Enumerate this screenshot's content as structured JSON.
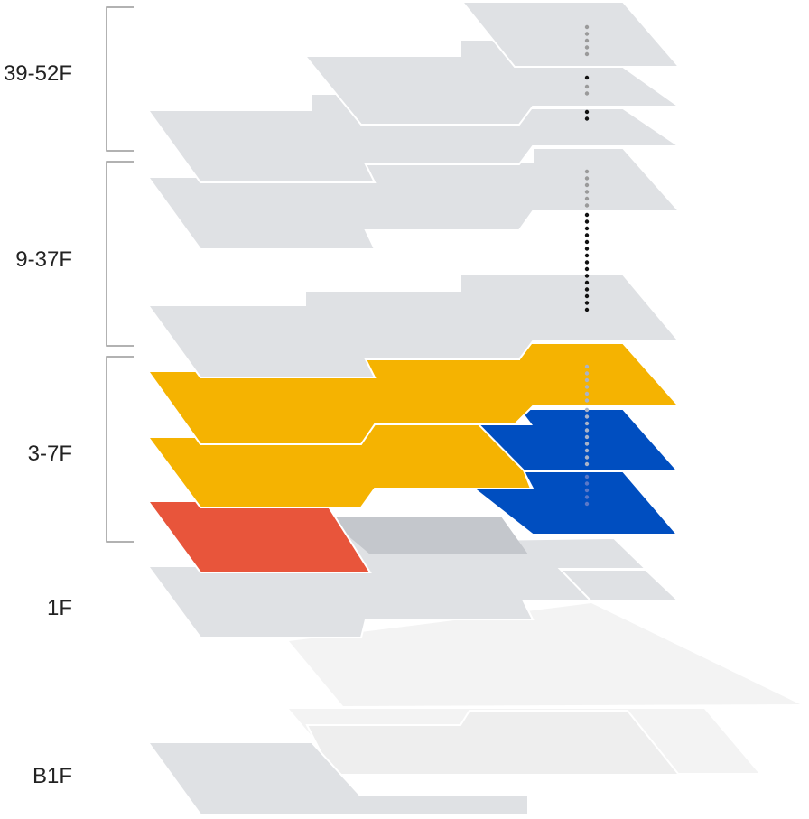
{
  "labels": {
    "upper": "39-52F",
    "middle": "9-37F",
    "lower": "3-7F",
    "ground": "1F",
    "basement": "B1F"
  },
  "colors": {
    "floor_gray": "#dfe1e4",
    "floor_light": "#eeeeee",
    "floor_faint": "#f3f3f3",
    "yellow": "#f5b301",
    "blue": "#004ec0",
    "red": "#e8553b",
    "gray_overlay": "#c4c7cc",
    "bracket": "#999999",
    "dot_gray": "#9a9a9a",
    "dot_black": "#111111",
    "dot_light": "#aab3c8"
  }
}
